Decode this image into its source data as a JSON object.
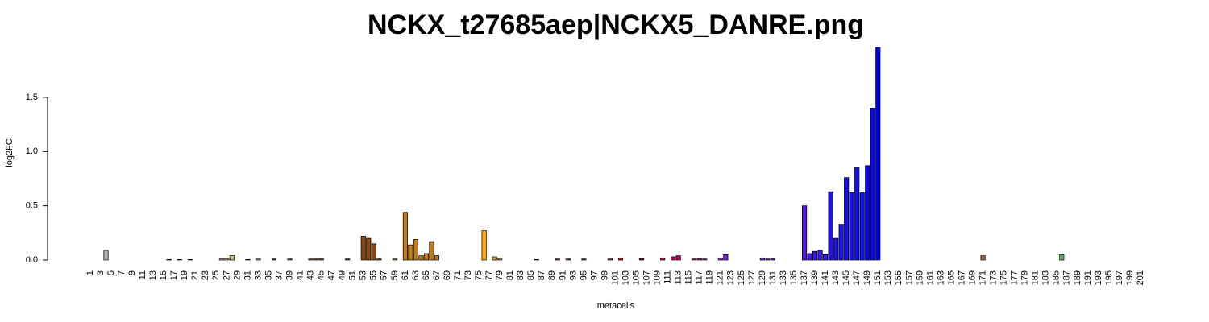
{
  "chart_data": {
    "type": "bar",
    "title": "NCKX_t27685aep|NCKX5_DANRE.png",
    "x_label": "metacells",
    "y_label": "log2FC",
    "categories": [
      "1",
      null,
      "3",
      null,
      "5",
      null,
      "7",
      null,
      "9",
      null,
      "11",
      null,
      "13",
      null,
      "15",
      null,
      "17",
      null,
      "19",
      null,
      "21",
      null,
      "23",
      null,
      "25",
      null,
      "27",
      null,
      "29",
      null,
      "31",
      null,
      "33",
      null,
      "35",
      null,
      "37",
      null,
      "39",
      null,
      "41",
      null,
      "43",
      null,
      "45",
      null,
      "47",
      null,
      "49",
      null,
      "51",
      null,
      "53",
      null,
      "55",
      null,
      "57",
      null,
      "59",
      null,
      "61",
      null,
      "63",
      null,
      "65",
      null,
      "67",
      null,
      "69",
      null,
      "71",
      null,
      "73",
      null,
      "75",
      null,
      "77",
      null,
      "79",
      null,
      "81",
      null,
      "83",
      null,
      "85",
      null,
      "87",
      null,
      "89",
      null,
      "91",
      null,
      "93",
      null,
      "95",
      null,
      "97",
      null,
      "99",
      null,
      "101",
      null,
      "103",
      null,
      "105",
      null,
      "107",
      null,
      "109",
      null,
      "111",
      null,
      "113",
      null,
      "115",
      null,
      "117",
      null,
      "119",
      null,
      "121",
      null,
      "123",
      null,
      "125",
      null,
      "127",
      null,
      "129",
      null,
      "131",
      null,
      "133",
      null,
      "135",
      null,
      "137",
      null,
      "139",
      null,
      "141",
      null,
      "143",
      null,
      "145",
      null,
      "147",
      null,
      "149",
      null,
      "151",
      null,
      "153",
      null,
      "155",
      null,
      "157",
      null,
      "159",
      null,
      "161",
      null,
      "163",
      null,
      "165",
      null,
      "167",
      null,
      "169",
      null,
      "171",
      null,
      "173",
      null,
      "175",
      null,
      "177",
      null,
      "179",
      null,
      "181",
      null,
      "183",
      null,
      "185",
      null,
      "187",
      null,
      "189",
      null,
      "191",
      null,
      "193",
      null,
      "195",
      null,
      "197",
      null,
      "199",
      null,
      "201"
    ],
    "values": [
      0,
      0,
      0,
      0.09,
      0,
      0,
      0,
      0,
      0,
      0,
      0,
      0,
      0,
      0,
      0,
      0.005,
      0,
      0.005,
      0,
      0.005,
      0,
      0,
      0,
      0,
      0,
      0.01,
      0.01,
      0.04,
      0,
      0,
      0.005,
      0,
      0.015,
      0,
      0,
      0.01,
      0,
      0,
      0.01,
      0,
      0,
      0,
      0.01,
      0.01,
      0.015,
      0,
      0,
      0,
      0,
      0.01,
      0,
      0,
      0.22,
      0.2,
      0.15,
      0.01,
      0,
      0,
      0.01,
      0,
      0.44,
      0.14,
      0.19,
      0.04,
      0.06,
      0.17,
      0.04,
      0,
      0,
      0,
      0,
      0,
      0,
      0,
      0,
      0.27,
      0,
      0.03,
      0.01,
      0,
      0,
      0,
      0,
      0,
      0,
      0.005,
      0,
      0,
      0,
      0.01,
      0,
      0.01,
      0,
      0,
      0.01,
      0,
      0,
      0,
      0,
      0.01,
      0,
      0.02,
      0,
      0,
      0,
      0.015,
      0,
      0,
      0,
      0.02,
      0,
      0.03,
      0.04,
      0,
      0,
      0.01,
      0.015,
      0.01,
      0,
      0,
      0.02,
      0.05,
      0,
      0,
      0,
      0,
      0,
      0,
      0.02,
      0.01,
      0.015,
      0,
      0,
      0,
      0,
      0,
      0.5,
      0.06,
      0.08,
      0.09,
      0.05,
      0.63,
      0.2,
      0.33,
      0.76,
      0.62,
      0.85,
      0.62,
      0.87,
      1.4,
      1.96,
      0,
      0,
      0,
      0,
      0,
      0,
      0,
      0,
      0,
      0,
      0,
      0,
      0,
      0,
      0,
      0,
      0,
      0,
      0,
      0.04,
      0,
      0,
      0,
      0,
      0,
      0,
      0,
      0,
      0,
      0,
      0,
      0,
      0,
      0,
      0.05,
      0,
      0,
      0,
      0,
      0,
      0,
      0,
      0,
      0,
      0,
      0,
      0,
      0,
      0,
      0
    ],
    "colors": [
      "#888",
      "#888",
      "#888",
      "#aaa",
      "#888",
      "#888",
      "#888",
      "#888",
      "#888",
      "#888",
      "#888",
      "#888",
      "#888",
      "#888",
      "#888",
      "#8b5a2b",
      "#888",
      "#8b5a2b",
      "#888",
      "#8b5a2b",
      "#888",
      "#888",
      "#888",
      "#888",
      "#888",
      "#deb887",
      "#deb887",
      "#deb887",
      "#888",
      "#888",
      "#8b5a2b",
      "#888",
      "#c49a6c",
      "#888",
      "#888",
      "#5c4033",
      "#888",
      "#888",
      "#8b5a2b",
      "#888",
      "#888",
      "#888",
      "#8b5a2b",
      "#8b5a2b",
      "#8b5a2b",
      "#888",
      "#888",
      "#888",
      "#888",
      "#5c4033",
      "#888",
      "#888",
      "#8b4513",
      "#8b4513",
      "#8b4513",
      "#8b4513",
      "#888",
      "#888",
      "#c27a1f",
      "#888",
      "#c27a1f",
      "#c27a1f",
      "#c27a1f",
      "#c27a1f",
      "#c27a1f",
      "#c27a1f",
      "#c27a1f",
      "#888",
      "#888",
      "#888",
      "#888",
      "#888",
      "#888",
      "#888",
      "#888",
      "#ffa500",
      "#888",
      "#d4a04c",
      "#d4a04c",
      "#888",
      "#888",
      "#888",
      "#888",
      "#888",
      "#888",
      "#8b4513",
      "#888",
      "#888",
      "#888",
      "#a0522d",
      "#888",
      "#c04020",
      "#888",
      "#888",
      "#a0522d",
      "#888",
      "#888",
      "#888",
      "#888",
      "#b03030",
      "#888",
      "#c01020",
      "#888",
      "#888",
      "#888",
      "#a01030",
      "#888",
      "#888",
      "#888",
      "#c0103a",
      "#888",
      "#c01050",
      "#c00060",
      "#888",
      "#888",
      "#b02080",
      "#a020a0",
      "#9020b0",
      "#888",
      "#888",
      "#9020c0",
      "#8020d0",
      "#888",
      "#888",
      "#888",
      "#888",
      "#888",
      "#888",
      "#7020d0",
      "#6a20d8",
      "#6020d8",
      "#888",
      "#888",
      "#888",
      "#888",
      "#888",
      "#5018d8",
      "#4818e0",
      "#4018e0",
      "#3818e4",
      "#3818e4",
      "#2010ea",
      "#2010ea",
      "#2010ea",
      "#1810ea",
      "#1810ea",
      "#1010ec",
      "#1010ec",
      "#0808ee",
      "#0808ee",
      "#0000ee",
      "#888",
      "#888",
      "#888",
      "#888",
      "#888",
      "#888",
      "#888",
      "#888",
      "#888",
      "#888",
      "#888",
      "#888",
      "#888",
      "#888",
      "#888",
      "#888",
      "#888",
      "#888",
      "#888",
      "#9b7040",
      "#888",
      "#888",
      "#888",
      "#888",
      "#888",
      "#888",
      "#888",
      "#888",
      "#888",
      "#888",
      "#888",
      "#888",
      "#888",
      "#888",
      "#6ab06a",
      "#888",
      "#888",
      "#888",
      "#888",
      "#888",
      "#888",
      "#888",
      "#888",
      "#888",
      "#888",
      "#888",
      "#888",
      "#888",
      "#888",
      "#888"
    ],
    "ylim": [
      0,
      1.96
    ],
    "yticks": [
      {
        "value": 0,
        "label": "0.0"
      },
      {
        "value": 0.5,
        "label": "0.5"
      },
      {
        "value": 1,
        "label": "1.0"
      },
      {
        "value": 1.5,
        "label": "1.5"
      }
    ]
  }
}
